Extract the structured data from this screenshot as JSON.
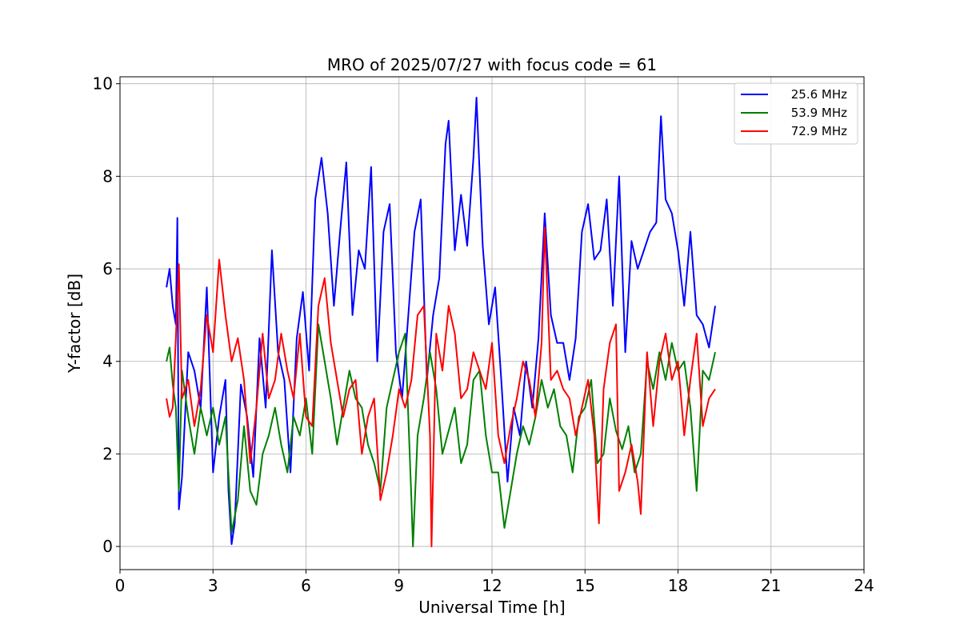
{
  "chart_data": {
    "type": "line",
    "title": "MRO of 2025/07/27 with focus code = 61",
    "xlabel": "Universal Time [h]",
    "ylabel": "Y-factor [dB]",
    "xlim": [
      0,
      24
    ],
    "ylim": [
      -0.5,
      10.15
    ],
    "xticks": [
      0,
      3,
      6,
      9,
      12,
      15,
      18,
      21,
      24
    ],
    "yticks": [
      0,
      2,
      4,
      6,
      8,
      10
    ],
    "grid": true,
    "legend_position": "top-right",
    "series": [
      {
        "name": "25.6 MHz",
        "color": "#0000ff",
        "points": [
          [
            1.5,
            5.6
          ],
          [
            1.6,
            6.0
          ],
          [
            1.7,
            5.2
          ],
          [
            1.8,
            4.8
          ],
          [
            1.85,
            7.1
          ],
          [
            1.9,
            0.8
          ],
          [
            2.0,
            1.5
          ],
          [
            2.2,
            4.2
          ],
          [
            2.4,
            3.8
          ],
          [
            2.6,
            3.0
          ],
          [
            2.8,
            5.6
          ],
          [
            3.0,
            1.6
          ],
          [
            3.2,
            2.8
          ],
          [
            3.4,
            3.6
          ],
          [
            3.5,
            1.2
          ],
          [
            3.6,
            0.05
          ],
          [
            3.7,
            0.5
          ],
          [
            3.9,
            3.5
          ],
          [
            4.1,
            2.8
          ],
          [
            4.3,
            1.5
          ],
          [
            4.5,
            4.5
          ],
          [
            4.7,
            3.0
          ],
          [
            4.9,
            6.4
          ],
          [
            5.1,
            4.2
          ],
          [
            5.3,
            3.6
          ],
          [
            5.5,
            1.6
          ],
          [
            5.7,
            4.5
          ],
          [
            5.9,
            5.5
          ],
          [
            6.1,
            3.8
          ],
          [
            6.3,
            7.5
          ],
          [
            6.5,
            8.4
          ],
          [
            6.7,
            7.2
          ],
          [
            6.9,
            5.2
          ],
          [
            7.1,
            6.8
          ],
          [
            7.3,
            8.3
          ],
          [
            7.5,
            5.0
          ],
          [
            7.7,
            6.4
          ],
          [
            7.9,
            6.0
          ],
          [
            8.1,
            8.2
          ],
          [
            8.3,
            4.0
          ],
          [
            8.5,
            6.8
          ],
          [
            8.7,
            7.4
          ],
          [
            8.9,
            4.2
          ],
          [
            9.1,
            3.2
          ],
          [
            9.3,
            5.0
          ],
          [
            9.5,
            6.8
          ],
          [
            9.7,
            7.5
          ],
          [
            9.9,
            3.6
          ],
          [
            10.1,
            5.0
          ],
          [
            10.3,
            5.8
          ],
          [
            10.5,
            8.7
          ],
          [
            10.6,
            9.2
          ],
          [
            10.8,
            6.4
          ],
          [
            11.0,
            7.6
          ],
          [
            11.2,
            6.5
          ],
          [
            11.4,
            8.4
          ],
          [
            11.5,
            9.7
          ],
          [
            11.7,
            6.5
          ],
          [
            11.9,
            4.8
          ],
          [
            12.1,
            5.6
          ],
          [
            12.3,
            3.6
          ],
          [
            12.5,
            1.4
          ],
          [
            12.7,
            3.0
          ],
          [
            12.9,
            2.4
          ],
          [
            13.1,
            4.0
          ],
          [
            13.3,
            3.0
          ],
          [
            13.5,
            4.5
          ],
          [
            13.7,
            7.2
          ],
          [
            13.9,
            5.0
          ],
          [
            14.1,
            4.4
          ],
          [
            14.3,
            4.4
          ],
          [
            14.5,
            3.6
          ],
          [
            14.7,
            4.5
          ],
          [
            14.9,
            6.8
          ],
          [
            15.1,
            7.4
          ],
          [
            15.3,
            6.2
          ],
          [
            15.5,
            6.4
          ],
          [
            15.7,
            7.5
          ],
          [
            15.9,
            5.2
          ],
          [
            16.1,
            8.0
          ],
          [
            16.3,
            4.2
          ],
          [
            16.5,
            6.6
          ],
          [
            16.7,
            6.0
          ],
          [
            16.9,
            6.4
          ],
          [
            17.1,
            6.8
          ],
          [
            17.3,
            7.0
          ],
          [
            17.45,
            9.3
          ],
          [
            17.6,
            7.5
          ],
          [
            17.8,
            7.2
          ],
          [
            18.0,
            6.4
          ],
          [
            18.2,
            5.2
          ],
          [
            18.4,
            6.8
          ],
          [
            18.6,
            5.0
          ],
          [
            18.8,
            4.8
          ],
          [
            19.0,
            4.3
          ],
          [
            19.2,
            5.2
          ]
        ]
      },
      {
        "name": "53.9 MHz",
        "color": "#008000",
        "points": [
          [
            1.5,
            4.0
          ],
          [
            1.6,
            4.3
          ],
          [
            1.7,
            3.5
          ],
          [
            1.8,
            3.0
          ],
          [
            1.9,
            1.2
          ],
          [
            2.0,
            3.8
          ],
          [
            2.2,
            2.8
          ],
          [
            2.4,
            2.0
          ],
          [
            2.6,
            3.0
          ],
          [
            2.8,
            2.4
          ],
          [
            3.0,
            3.0
          ],
          [
            3.2,
            2.2
          ],
          [
            3.4,
            2.8
          ],
          [
            3.6,
            0.3
          ],
          [
            3.8,
            1.0
          ],
          [
            4.0,
            2.6
          ],
          [
            4.2,
            1.2
          ],
          [
            4.4,
            0.9
          ],
          [
            4.6,
            2.0
          ],
          [
            4.8,
            2.4
          ],
          [
            5.0,
            3.0
          ],
          [
            5.2,
            2.2
          ],
          [
            5.4,
            1.6
          ],
          [
            5.6,
            2.8
          ],
          [
            5.8,
            2.4
          ],
          [
            6.0,
            3.2
          ],
          [
            6.2,
            2.0
          ],
          [
            6.4,
            4.8
          ],
          [
            6.6,
            4.0
          ],
          [
            6.8,
            3.2
          ],
          [
            7.0,
            2.2
          ],
          [
            7.2,
            3.0
          ],
          [
            7.4,
            3.8
          ],
          [
            7.6,
            3.2
          ],
          [
            7.8,
            3.0
          ],
          [
            8.0,
            2.2
          ],
          [
            8.2,
            1.8
          ],
          [
            8.4,
            1.2
          ],
          [
            8.6,
            3.0
          ],
          [
            8.8,
            3.6
          ],
          [
            9.0,
            4.2
          ],
          [
            9.2,
            4.6
          ],
          [
            9.4,
            1.0
          ],
          [
            9.45,
            0.0
          ],
          [
            9.6,
            2.4
          ],
          [
            9.8,
            3.2
          ],
          [
            10.0,
            4.2
          ],
          [
            10.2,
            3.4
          ],
          [
            10.4,
            2.0
          ],
          [
            10.6,
            2.5
          ],
          [
            10.8,
            3.0
          ],
          [
            11.0,
            1.8
          ],
          [
            11.2,
            2.2
          ],
          [
            11.4,
            3.6
          ],
          [
            11.6,
            3.8
          ],
          [
            11.8,
            2.4
          ],
          [
            12.0,
            1.6
          ],
          [
            12.2,
            1.6
          ],
          [
            12.4,
            0.4
          ],
          [
            12.6,
            1.2
          ],
          [
            12.8,
            2.0
          ],
          [
            13.0,
            2.6
          ],
          [
            13.2,
            2.2
          ],
          [
            13.4,
            2.8
          ],
          [
            13.6,
            3.6
          ],
          [
            13.8,
            3.0
          ],
          [
            14.0,
            3.4
          ],
          [
            14.2,
            2.6
          ],
          [
            14.4,
            2.4
          ],
          [
            14.6,
            1.6
          ],
          [
            14.8,
            2.8
          ],
          [
            15.0,
            3.0
          ],
          [
            15.2,
            3.6
          ],
          [
            15.4,
            1.8
          ],
          [
            15.6,
            2.0
          ],
          [
            15.8,
            3.2
          ],
          [
            16.0,
            2.5
          ],
          [
            16.2,
            2.1
          ],
          [
            16.4,
            2.6
          ],
          [
            16.6,
            1.6
          ],
          [
            16.8,
            2.0
          ],
          [
            17.0,
            4.0
          ],
          [
            17.2,
            3.4
          ],
          [
            17.4,
            4.2
          ],
          [
            17.6,
            3.6
          ],
          [
            17.8,
            4.4
          ],
          [
            18.0,
            3.8
          ],
          [
            18.2,
            4.0
          ],
          [
            18.4,
            3.0
          ],
          [
            18.6,
            1.2
          ],
          [
            18.8,
            3.8
          ],
          [
            19.0,
            3.6
          ],
          [
            19.2,
            4.2
          ]
        ]
      },
      {
        "name": "72.9 MHz",
        "color": "#ff0000",
        "points": [
          [
            1.5,
            3.2
          ],
          [
            1.6,
            2.8
          ],
          [
            1.7,
            3.0
          ],
          [
            1.8,
            4.5
          ],
          [
            1.9,
            6.1
          ],
          [
            2.0,
            3.2
          ],
          [
            2.2,
            3.6
          ],
          [
            2.4,
            2.6
          ],
          [
            2.6,
            3.4
          ],
          [
            2.8,
            5.0
          ],
          [
            3.0,
            4.2
          ],
          [
            3.2,
            6.2
          ],
          [
            3.4,
            5.0
          ],
          [
            3.6,
            4.0
          ],
          [
            3.8,
            4.5
          ],
          [
            4.0,
            3.6
          ],
          [
            4.2,
            1.8
          ],
          [
            4.4,
            3.0
          ],
          [
            4.6,
            4.6
          ],
          [
            4.8,
            3.2
          ],
          [
            5.0,
            3.6
          ],
          [
            5.2,
            4.6
          ],
          [
            5.4,
            3.8
          ],
          [
            5.6,
            3.2
          ],
          [
            5.8,
            4.6
          ],
          [
            6.0,
            2.8
          ],
          [
            6.2,
            2.6
          ],
          [
            6.4,
            5.2
          ],
          [
            6.6,
            5.8
          ],
          [
            6.8,
            4.4
          ],
          [
            7.0,
            3.6
          ],
          [
            7.2,
            2.8
          ],
          [
            7.4,
            3.4
          ],
          [
            7.6,
            3.6
          ],
          [
            7.8,
            2.0
          ],
          [
            8.0,
            2.8
          ],
          [
            8.2,
            3.2
          ],
          [
            8.4,
            1.0
          ],
          [
            8.6,
            1.6
          ],
          [
            8.8,
            2.4
          ],
          [
            9.0,
            3.4
          ],
          [
            9.2,
            3.0
          ],
          [
            9.4,
            3.6
          ],
          [
            9.6,
            5.0
          ],
          [
            9.8,
            5.2
          ],
          [
            10.0,
            2.4
          ],
          [
            10.05,
            0.0
          ],
          [
            10.2,
            4.6
          ],
          [
            10.4,
            3.8
          ],
          [
            10.6,
            5.2
          ],
          [
            10.8,
            4.6
          ],
          [
            11.0,
            3.2
          ],
          [
            11.2,
            3.4
          ],
          [
            11.4,
            4.2
          ],
          [
            11.6,
            3.8
          ],
          [
            11.8,
            3.4
          ],
          [
            12.0,
            4.4
          ],
          [
            12.2,
            2.4
          ],
          [
            12.4,
            1.8
          ],
          [
            12.6,
            2.6
          ],
          [
            12.8,
            3.2
          ],
          [
            13.0,
            4.0
          ],
          [
            13.2,
            3.6
          ],
          [
            13.4,
            2.8
          ],
          [
            13.6,
            4.4
          ],
          [
            13.7,
            6.9
          ],
          [
            13.9,
            3.6
          ],
          [
            14.1,
            3.8
          ],
          [
            14.3,
            3.4
          ],
          [
            14.5,
            3.2
          ],
          [
            14.7,
            2.4
          ],
          [
            14.9,
            3.0
          ],
          [
            15.1,
            3.6
          ],
          [
            15.3,
            2.4
          ],
          [
            15.45,
            0.5
          ],
          [
            15.6,
            3.4
          ],
          [
            15.8,
            4.4
          ],
          [
            16.0,
            4.8
          ],
          [
            16.1,
            1.2
          ],
          [
            16.3,
            1.6
          ],
          [
            16.5,
            2.2
          ],
          [
            16.7,
            1.4
          ],
          [
            16.8,
            0.7
          ],
          [
            17.0,
            4.2
          ],
          [
            17.2,
            2.6
          ],
          [
            17.4,
            4.0
          ],
          [
            17.6,
            4.6
          ],
          [
            17.8,
            3.6
          ],
          [
            18.0,
            4.0
          ],
          [
            18.2,
            2.4
          ],
          [
            18.4,
            3.6
          ],
          [
            18.6,
            4.6
          ],
          [
            18.8,
            2.6
          ],
          [
            19.0,
            3.2
          ],
          [
            19.2,
            3.4
          ]
        ]
      }
    ]
  }
}
